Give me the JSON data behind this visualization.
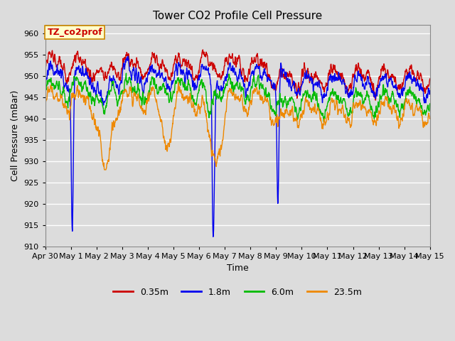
{
  "title": "Tower CO2 Profile Cell Pressure",
  "ylabel": "Cell Pressure (mBar)",
  "xlabel": "Time",
  "annotation_text": "TZ_co2prof",
  "annotation_bg": "#ffffcc",
  "annotation_border": "#cc8800",
  "ylim": [
    910,
    962
  ],
  "yticks": [
    910,
    915,
    920,
    925,
    930,
    935,
    940,
    945,
    950,
    955,
    960
  ],
  "series_colors": [
    "#cc0000",
    "#0000ee",
    "#00bb00",
    "#ee8800"
  ],
  "series_labels": [
    "0.35m",
    "1.8m",
    "6.0m",
    "23.5m"
  ],
  "plot_bg_color": "#dcdcdc",
  "fig_bg_color": "#dcdcdc",
  "grid_color": "#ffffff",
  "xtick_labels": [
    "Apr 30",
    "May 1",
    "May 2",
    "May 3",
    "May 4",
    "May 5",
    "May 6",
    "May 7",
    "May 8",
    "May 9",
    "May 10",
    "May 11",
    "May 12",
    "May 13",
    "May 14",
    "May 15"
  ],
  "title_fontsize": 11,
  "label_fontsize": 9,
  "tick_fontsize": 8,
  "legend_fontsize": 9,
  "lw": 1.0
}
